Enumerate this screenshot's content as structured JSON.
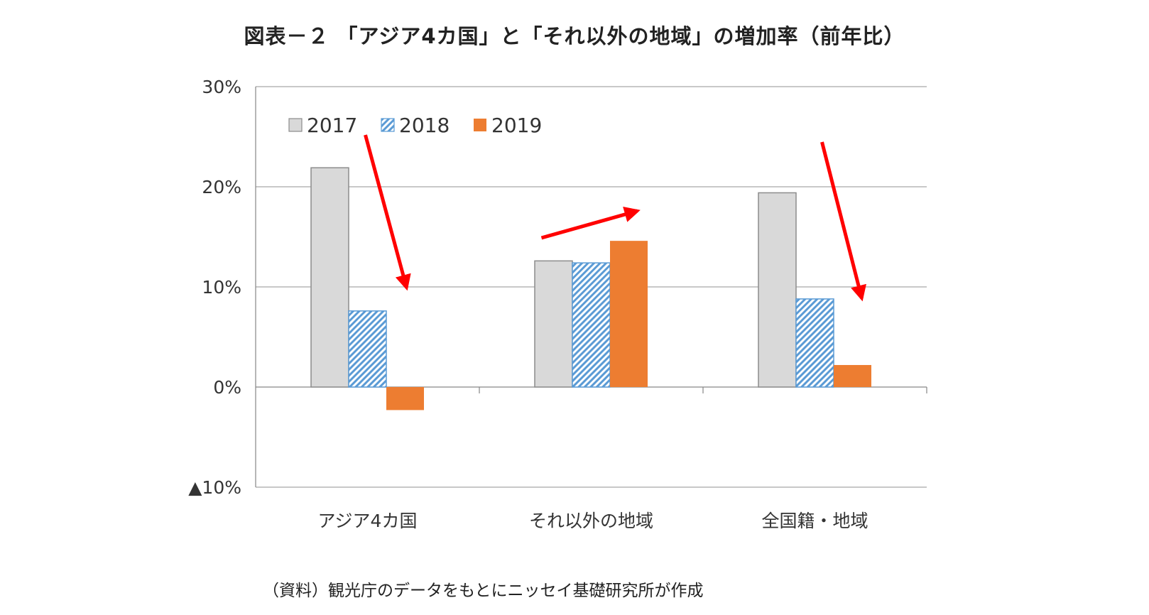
{
  "chart_data": {
    "type": "bar",
    "title": "図表－２ 「アジア4カ国」と「それ以外の地域」の増加率（前年比）",
    "categories": [
      "アジア4カ国",
      "それ以外の地域",
      "全国籍・地域"
    ],
    "series": [
      {
        "name": "2017",
        "values": [
          21.9,
          12.6,
          19.4
        ],
        "color": "#d9d9d9",
        "pattern": "solid"
      },
      {
        "name": "2018",
        "values": [
          7.6,
          12.4,
          8.8
        ],
        "color": "#5b9bd5",
        "pattern": "diagonal-hatch"
      },
      {
        "name": "2019",
        "values": [
          -2.3,
          14.6,
          2.2
        ],
        "color": "#ed7d31",
        "pattern": "solid"
      }
    ],
    "ylim": [
      -10,
      30
    ],
    "yticks": [
      {
        "value": 30,
        "label": "30%"
      },
      {
        "value": 20,
        "label": "20%"
      },
      {
        "value": 10,
        "label": "10%"
      },
      {
        "value": 0,
        "label": "0%"
      },
      {
        "value": -10,
        "label": "▲10%"
      }
    ],
    "grid": true,
    "legend_position": "top-left",
    "annotations": [
      {
        "type": "arrow",
        "category": "アジア4カ国",
        "direction": "down",
        "color": "#ff0000"
      },
      {
        "type": "arrow",
        "category": "それ以外の地域",
        "direction": "up",
        "color": "#ff0000"
      },
      {
        "type": "arrow",
        "category": "全国籍・地域",
        "direction": "down",
        "color": "#ff0000"
      }
    ]
  },
  "source_note": "（資料）観光庁のデータをもとにニッセイ基礎研究所が作成"
}
